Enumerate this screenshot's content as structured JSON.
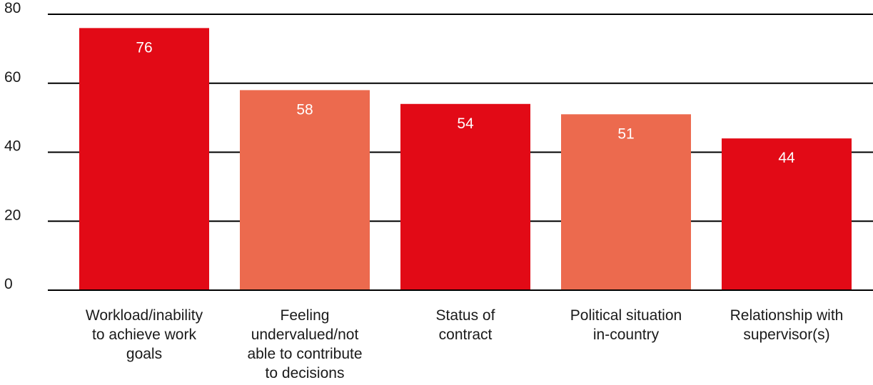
{
  "chart_data": {
    "type": "bar",
    "title": "",
    "xlabel": "",
    "ylabel": "",
    "categories": [
      [
        "Workload/inability",
        "to achieve work",
        "goals"
      ],
      [
        "Feeling",
        "undervalued/not",
        "able to contribute",
        "to decisions"
      ],
      [
        "Status of",
        "contract"
      ],
      [
        "Political situation",
        "in-country"
      ],
      [
        "Relationship with",
        "supervisor(s)"
      ]
    ],
    "values": [
      76,
      58,
      54,
      51,
      44
    ],
    "data_labels": [
      "76",
      "58",
      "54",
      "51",
      "44"
    ],
    "bar_colors": [
      "#e20a16",
      "#ec6a4e",
      "#e20a16",
      "#ec6a4e",
      "#e20a16"
    ],
    "ylim": [
      0,
      80
    ],
    "yticks": [
      0,
      20,
      40,
      60,
      80
    ],
    "ytick_labels": [
      "0",
      "20",
      "40",
      "60",
      "80"
    ],
    "grid": true,
    "legend": "none"
  }
}
